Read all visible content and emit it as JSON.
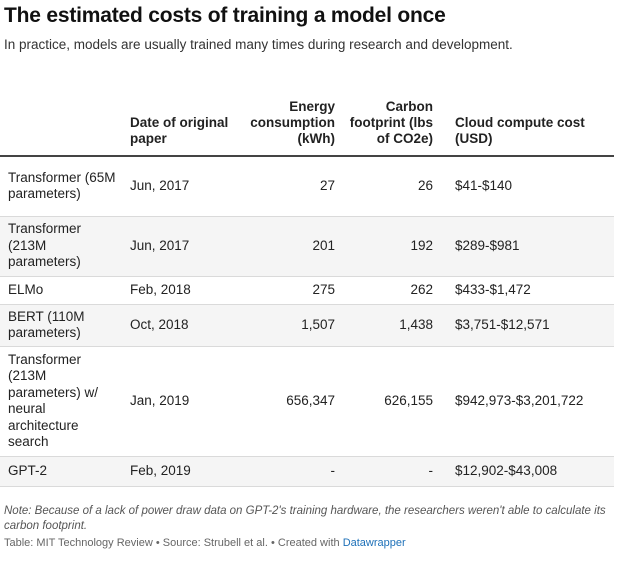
{
  "title": "The estimated costs of training a model once",
  "subtitle": "In practice, models are usually trained many times during research and development.",
  "columns": [
    "",
    "Date of original paper",
    "Energy consumption (kWh)",
    "Carbon footprint (lbs of CO2e)",
    "Cloud compute cost (USD)"
  ],
  "rows": [
    {
      "model": "Transformer (65M parameters)",
      "date": "Jun, 2017",
      "energy": "27",
      "carbon": "26",
      "cost": "$41-$140"
    },
    {
      "model": "Transformer (213M parameters)",
      "date": "Jun, 2017",
      "energy": "201",
      "carbon": "192",
      "cost": "$289-$981"
    },
    {
      "model": "ELMo",
      "date": "Feb, 2018",
      "energy": "275",
      "carbon": "262",
      "cost": "$433-$1,472"
    },
    {
      "model": "BERT (110M parameters)",
      "date": "Oct, 2018",
      "energy": "1,507",
      "carbon": "1,438",
      "cost": "$3,751-$12,571"
    },
    {
      "model": "Transformer (213M parameters) w/ neural architecture search",
      "date": "Jan, 2019",
      "energy": "656,347",
      "carbon": "626,155",
      "cost": "$942,973-$3,201,722"
    },
    {
      "model": "GPT-2",
      "date": "Feb, 2019",
      "energy": "-",
      "carbon": "-",
      "cost": "$12,902-$43,008"
    }
  ],
  "note": "Note: Because of a lack of power draw data on GPT-2's training hardware, the researchers weren't able to calculate its carbon footprint.",
  "footer": {
    "source_text": "Table: MIT Technology Review • Source: Strubell et al. • Created with ",
    "link_text": "Datawrapper"
  }
}
